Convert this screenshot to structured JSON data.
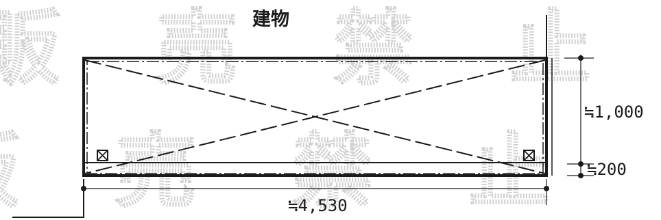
{
  "diagram": {
    "building_label": "建物",
    "dimensions": {
      "height_main": "≒1,000",
      "height_small": "≒200",
      "width": "≒4,530"
    },
    "watermark_text": "販売禁止",
    "box_symbol": "⊠"
  }
}
